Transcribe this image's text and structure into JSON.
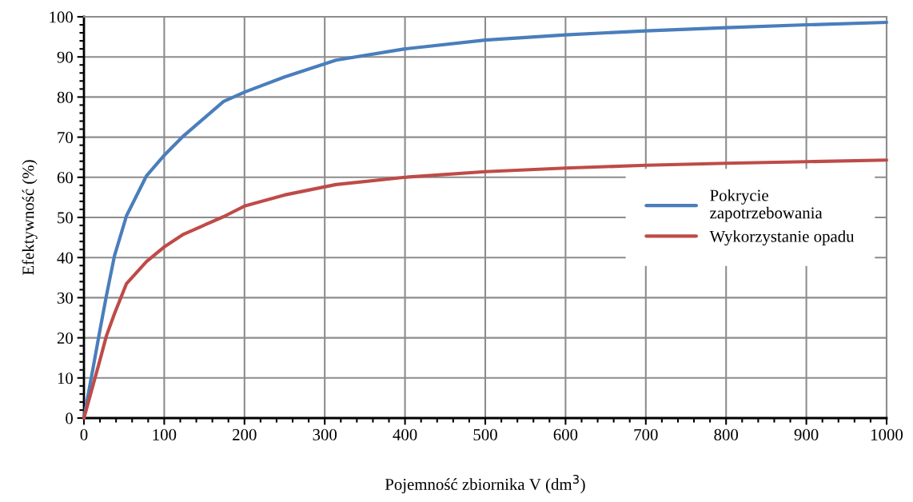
{
  "chart_data": {
    "type": "line",
    "xlabel": "Pojemność zbiornika V (dm$^{3}$)",
    "ylabel": "Efektywność (%)",
    "x": [
      0,
      20,
      28,
      38,
      53,
      78,
      101,
      124,
      174,
      201,
      250,
      314,
      400,
      500,
      600,
      700,
      800,
      900,
      1000
    ],
    "series": [
      {
        "name": "Pokrycie zapotrzebowania",
        "color": "#4a7ebb",
        "values": [
          0,
          22,
          30.5,
          40.4,
          50.4,
          60.4,
          65.7,
          70.3,
          78.9,
          81.3,
          85,
          89.2,
          92,
          94.2,
          95.5,
          96.5,
          97.3,
          98,
          98.6
        ]
      },
      {
        "name": "Wykorzystanie opadu",
        "color": "#be4b48",
        "values": [
          0,
          14.5,
          20.5,
          26,
          33.5,
          39,
          42.8,
          45.8,
          50.2,
          52.9,
          55.6,
          58.2,
          60,
          61.4,
          62.3,
          63,
          63.5,
          63.9,
          64.3
        ]
      }
    ],
    "xlim": [
      0,
      1000
    ],
    "ylim": [
      0,
      100
    ],
    "xticks": [
      0,
      100,
      200,
      300,
      400,
      500,
      600,
      700,
      800,
      900,
      1000
    ],
    "yticks": [
      0,
      10,
      20,
      30,
      40,
      50,
      60,
      70,
      80,
      90,
      100
    ],
    "grid": true,
    "legend": "right",
    "marker": "none",
    "line_style": "solid"
  }
}
